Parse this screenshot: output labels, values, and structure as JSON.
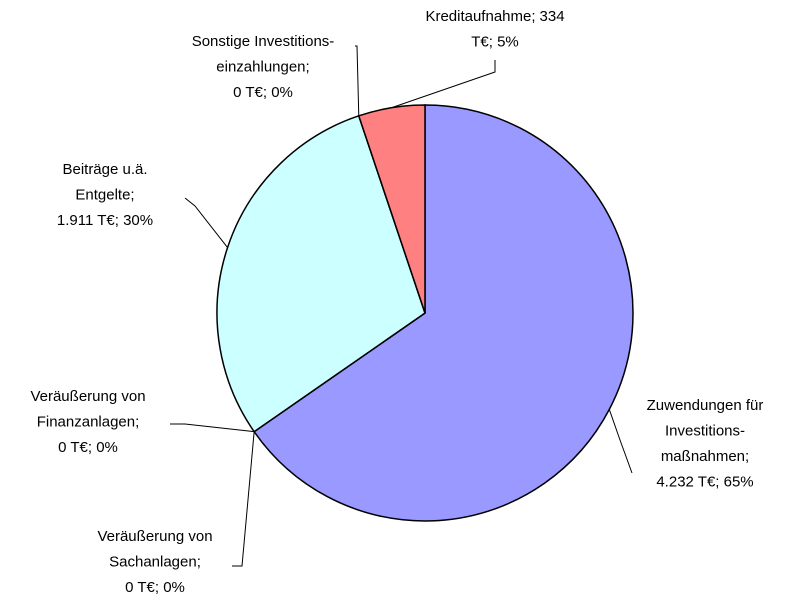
{
  "chart_data": {
    "type": "pie",
    "categories": [
      "Zuwendungen für\nInvestitions-\nmaßnahmen;",
      "Veräußerung von\nSachanlagen;",
      "Veräußerung von\nFinanzanlagen;",
      "Beiträge u.ä.\nEntgelte;",
      "Sonstige Investitions-\neinzahlungen;",
      "Kreditaufnahme;"
    ],
    "values": [
      4232,
      0,
      0,
      1911,
      0,
      334
    ],
    "value_labels": [
      "4.232 T€; 65%",
      "0 T€; 0%",
      "0 T€; 0%",
      "1.911 T€; 30%",
      "0 T€; 0%",
      "334\nT€; 5%"
    ],
    "colors": [
      "#9999ff",
      "#993366",
      "#ffffcc",
      "#ccffff",
      "#660066",
      "#ff8080"
    ]
  }
}
